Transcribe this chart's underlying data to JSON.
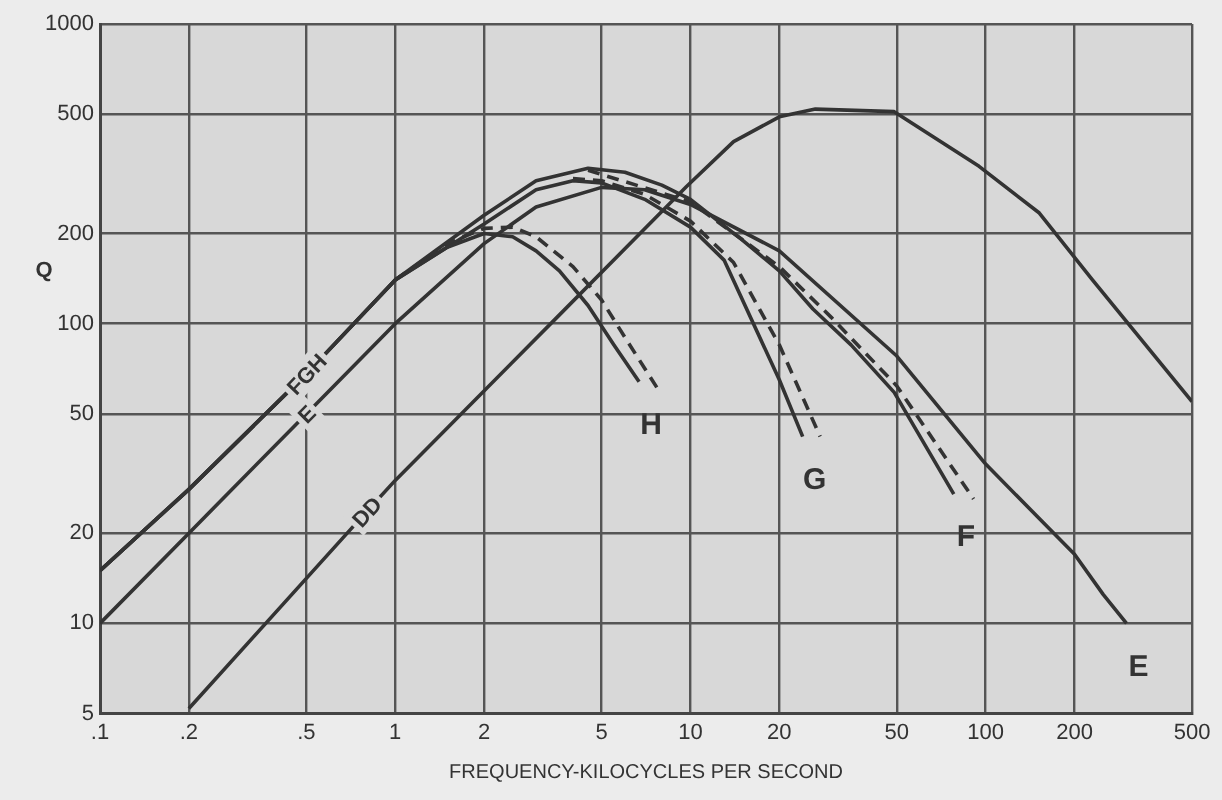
{
  "chart_data": {
    "type": "line",
    "xlabel": "FREQUENCY-KILOCYCLES PER SECOND",
    "ylabel": "Q",
    "log": "xy",
    "grid": true,
    "legend": false,
    "marker": "none",
    "xlim": [
      0.1,
      500
    ],
    "xticks": [
      {
        "value": 0.1,
        "label": ".1"
      },
      {
        "value": 0.2,
        "label": ".2"
      },
      {
        "value": 0.5,
        "label": ".5"
      },
      1,
      2,
      5,
      10,
      20,
      50,
      100,
      200,
      500
    ],
    "ylim": [
      5,
      1000
    ],
    "yticks": [
      5,
      10,
      20,
      50,
      100,
      200,
      500,
      1000
    ],
    "series": [
      {
        "color": "#333333",
        "line_style": "solid",
        "x": [
          0.1,
          0.2,
          0.5,
          1,
          1.5,
          2,
          2.5,
          3,
          3.6,
          4.5,
          5.5,
          6.7
        ],
        "values": [
          15,
          28,
          68,
          140,
          180,
          200,
          195,
          175,
          150,
          115,
          85,
          64
        ]
      },
      {
        "color": "#333333",
        "line_style": "dashed",
        "x": [
          1,
          1.5,
          2,
          2.5,
          3,
          4,
          5,
          6,
          7.8
        ],
        "values": [
          140,
          185,
          208,
          210,
          195,
          155,
          120,
          90,
          60
        ]
      },
      {
        "color": "#333333",
        "line_style": "solid",
        "x": [
          0.1,
          0.2,
          0.5,
          1,
          2,
          3,
          4,
          5,
          7,
          10,
          13,
          20,
          24
        ],
        "values": [
          15,
          28,
          68,
          140,
          215,
          280,
          300,
          295,
          260,
          210,
          163,
          65,
          42
        ]
      },
      {
        "color": "#333333",
        "line_style": "dashed",
        "x": [
          4,
          5,
          7,
          10,
          14,
          20,
          27.5
        ],
        "values": [
          305,
          300,
          270,
          220,
          160,
          85,
          42
        ]
      },
      {
        "color": "#333333",
        "line_style": "solid",
        "x": [
          0.1,
          0.2,
          0.5,
          1,
          2,
          3,
          4.5,
          6,
          8,
          10,
          15,
          20,
          26,
          35,
          49,
          78
        ],
        "values": [
          15,
          28,
          68,
          140,
          230,
          300,
          330,
          320,
          290,
          260,
          190,
          150,
          112,
          85,
          59,
          27
        ]
      },
      {
        "color": "#333333",
        "line_style": "dashed",
        "x": [
          4.5,
          10,
          20,
          30,
          50,
          91
        ],
        "values": [
          325,
          255,
          155,
          105,
          62,
          26
        ]
      },
      {
        "color": "#333333",
        "line_style": "solid",
        "x": [
          0.1,
          0.2,
          0.5,
          1,
          2,
          3,
          5,
          7,
          10,
          20,
          50,
          100,
          200,
          250,
          300
        ],
        "values": [
          10,
          20,
          50,
          100,
          185,
          245,
          285,
          280,
          250,
          175,
          78,
          34,
          17,
          12.5,
          10
        ]
      },
      {
        "color": "#333333",
        "line_style": "solid",
        "x": [
          0.2,
          0.8,
          1,
          3.6,
          9.7,
          14,
          20,
          26.5,
          49,
          95,
          152,
          230,
          500
        ],
        "values": [
          5.2,
          23.6,
          30,
          107,
          287,
          405,
          490,
          520,
          510,
          335,
          234,
          140,
          55
        ]
      }
    ],
    "annotations": [
      {
        "text": "FGH",
        "x": 0.5,
        "y": 68
      },
      {
        "text": "E",
        "x": 0.5,
        "y": 50
      },
      {
        "text": "DD",
        "x": 0.8,
        "y": 23.6
      },
      {
        "text": "H",
        "x": 6.7,
        "y": 64
      },
      {
        "text": "G",
        "x": 24,
        "y": 42
      },
      {
        "text": "F",
        "x": 78,
        "y": 27
      },
      {
        "text": "E",
        "x": 300,
        "y": 10
      }
    ]
  }
}
